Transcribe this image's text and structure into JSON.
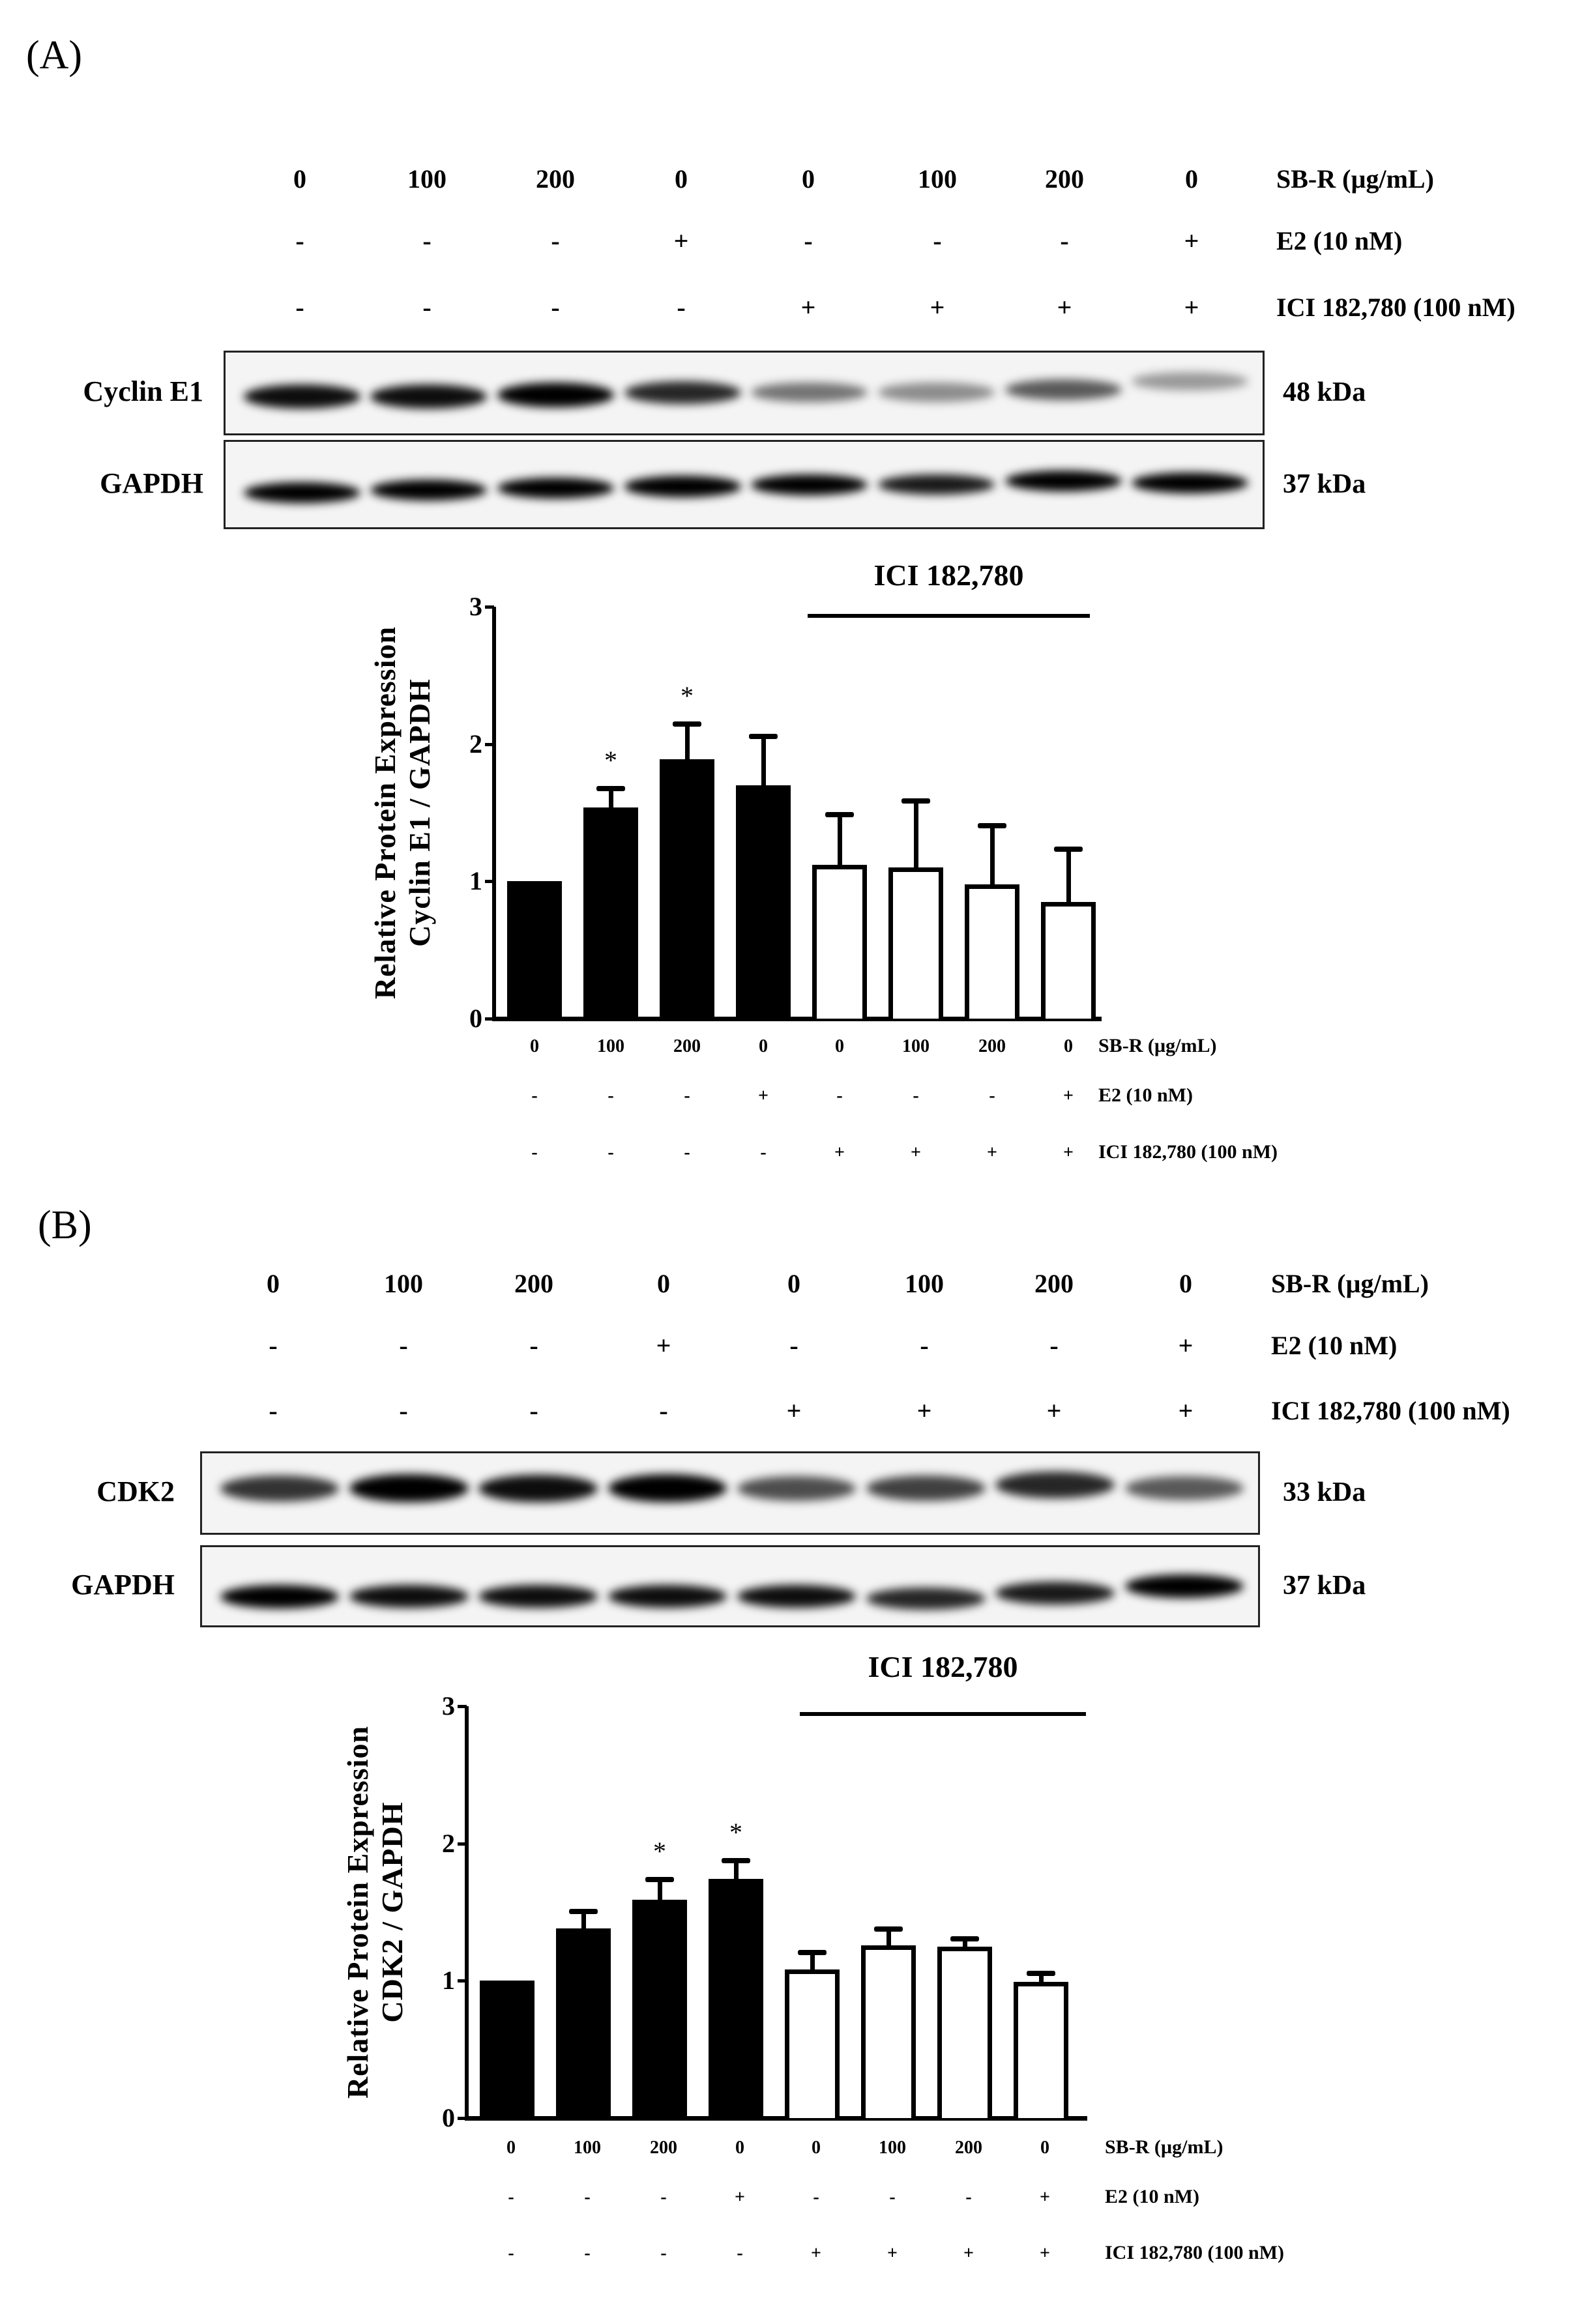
{
  "figure": {
    "panels": [
      {
        "label": "(A)",
        "letter": "A",
        "header": {
          "rows": [
            {
              "label": "SB-R (µg/mL)",
              "values": [
                "0",
                "100",
                "200",
                "0",
                "0",
                "100",
                "200",
                "0"
              ]
            },
            {
              "label": "E2 (10 nM)",
              "values": [
                "-",
                "-",
                "-",
                "+",
                "-",
                "-",
                "-",
                "+"
              ]
            },
            {
              "label": "ICI 182,780 (100 nM)",
              "values": [
                "-",
                "-",
                "-",
                "-",
                "+",
                "+",
                "+",
                "+"
              ]
            }
          ]
        },
        "blots": [
          {
            "name": "Cyclin E1",
            "kda": "48 kDa",
            "intensity": [
              0.95,
              0.95,
              1.0,
              0.85,
              0.55,
              0.45,
              0.65,
              0.4
            ]
          },
          {
            "name": "GAPDH",
            "kda": "37 kDa",
            "intensity": [
              1.0,
              1.0,
              1.0,
              1.0,
              1.0,
              0.9,
              1.0,
              1.0
            ]
          }
        ]
      },
      {
        "label": "(B)",
        "letter": "B",
        "header": {
          "rows": [
            {
              "label": "SB-R (µg/mL)",
              "values": [
                "0",
                "100",
                "200",
                "0",
                "0",
                "100",
                "200",
                "0"
              ]
            },
            {
              "label": "E2 (10 nM)",
              "values": [
                "-",
                "-",
                "-",
                "+",
                "-",
                "-",
                "-",
                "+"
              ]
            },
            {
              "label": "ICI 182,780 (100 nM)",
              "values": [
                "-",
                "-",
                "-",
                "-",
                "+",
                "+",
                "+",
                "+"
              ]
            }
          ]
        },
        "blots": [
          {
            "name": "CDK2",
            "kda": "33 kDa",
            "intensity": [
              0.8,
              1.0,
              0.95,
              1.0,
              0.7,
              0.75,
              0.85,
              0.65
            ]
          },
          {
            "name": "GAPDH",
            "kda": "37 kDa",
            "intensity": [
              1.0,
              0.95,
              0.95,
              0.95,
              0.95,
              0.85,
              0.9,
              1.0
            ]
          }
        ]
      }
    ]
  },
  "chart_data": [
    {
      "type": "bar",
      "panel": "A",
      "title": "ICI 182,780",
      "xlabel": "",
      "ylabel": "Relative Protein Expression\nCyclin E1 / GAPDH",
      "ylabel_line1": "Relative Protein Expression",
      "ylabel_line2": "Cyclin E1 / GAPDH",
      "ylim": [
        0,
        3
      ],
      "yticks": [
        "0",
        "1",
        "2",
        "3"
      ],
      "categories": [
        "1",
        "2",
        "3",
        "4",
        "5",
        "6",
        "7",
        "8"
      ],
      "x_rows": [
        {
          "label": "SB-R (µg/mL)",
          "values": [
            "0",
            "100",
            "200",
            "0",
            "0",
            "100",
            "200",
            "0"
          ]
        },
        {
          "label": "E2 (10 nM)",
          "values": [
            "-",
            "-",
            "-",
            "+",
            "-",
            "-",
            "-",
            "+"
          ]
        },
        {
          "label": "ICI 182,780 (100 nM)",
          "values": [
            "-",
            "-",
            "-",
            "-",
            "+",
            "+",
            "+",
            "+"
          ]
        }
      ],
      "values": [
        1.0,
        1.54,
        1.89,
        1.7,
        1.12,
        1.1,
        0.98,
        0.85
      ],
      "error_upper": [
        1.0,
        1.68,
        2.15,
        2.06,
        1.49,
        1.59,
        1.41,
        1.24
      ],
      "fill": [
        "black",
        "black",
        "black",
        "black",
        "white",
        "white",
        "white",
        "white"
      ],
      "significance": [
        "",
        "*",
        "*",
        "",
        "",
        "",
        "",
        ""
      ],
      "bracket": {
        "label": "ICI 182,780",
        "from": 5,
        "to": 8
      }
    },
    {
      "type": "bar",
      "panel": "B",
      "title": "ICI 182,780",
      "xlabel": "",
      "ylabel": "Relative Protein Expression\nCDK2 / GAPDH",
      "ylabel_line1": "Relative Protein Expression",
      "ylabel_line2": "CDK2 / GAPDH",
      "ylim": [
        0,
        3
      ],
      "yticks": [
        "0",
        "1",
        "2",
        "3"
      ],
      "categories": [
        "1",
        "2",
        "3",
        "4",
        "5",
        "6",
        "7",
        "8"
      ],
      "x_rows": [
        {
          "label": "SB-R (µg/mL)",
          "values": [
            "0",
            "100",
            "200",
            "0",
            "0",
            "100",
            "200",
            "0"
          ]
        },
        {
          "label": "E2 (10 nM)",
          "values": [
            "-",
            "-",
            "-",
            "+",
            "-",
            "-",
            "-",
            "+"
          ]
        },
        {
          "label": "ICI 182,780 (100 nM)",
          "values": [
            "-",
            "-",
            "-",
            "-",
            "+",
            "+",
            "+",
            "+"
          ]
        }
      ],
      "values": [
        1.0,
        1.38,
        1.59,
        1.74,
        1.08,
        1.26,
        1.25,
        0.99
      ],
      "error_upper": [
        1.0,
        1.51,
        1.74,
        1.88,
        1.21,
        1.38,
        1.31,
        1.06
      ],
      "fill": [
        "black",
        "black",
        "black",
        "black",
        "white",
        "white",
        "white",
        "white"
      ],
      "significance": [
        "",
        "",
        "*",
        "*",
        "",
        "",
        "",
        ""
      ],
      "bracket": {
        "label": "ICI 182,780",
        "from": 5,
        "to": 8
      }
    }
  ]
}
